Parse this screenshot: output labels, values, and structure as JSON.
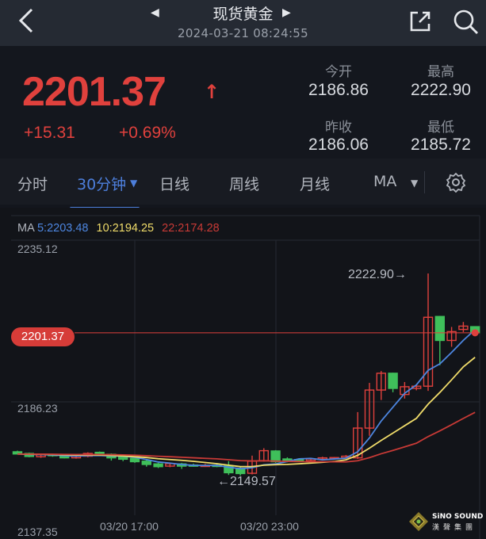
{
  "header": {
    "title": "现货黄金",
    "timestamp": "2024-03-21 08:24:55",
    "icons": [
      "back-icon",
      "prev-arrow-icon",
      "next-arrow-icon",
      "share-icon",
      "search-icon"
    ]
  },
  "quote": {
    "price": "2201.37",
    "direction": "↑",
    "change": "+15.31",
    "change_pct": "+0.69%",
    "stats": [
      {
        "label": "今开",
        "value": "2186.86"
      },
      {
        "label": "最高",
        "value": "2222.90"
      },
      {
        "label": "昨收",
        "value": "2186.06"
      },
      {
        "label": "最低",
        "value": "2185.72"
      }
    ]
  },
  "tabs": [
    {
      "label": "分时"
    },
    {
      "label": "30分钟",
      "active": true
    },
    {
      "label": "日线"
    },
    {
      "label": "周线"
    },
    {
      "label": "月线"
    },
    {
      "label": "MA"
    }
  ],
  "colors": {
    "up": "#e0413d",
    "down": "#3fbf5a",
    "ma5": "#4d86e0",
    "ma10": "#f0dc6a",
    "ma22": "#c83a36",
    "accent": "#4d7fdc"
  },
  "ma_legend": {
    "prefix": "MA",
    "ma5": "5:2203.48",
    "ma10": "10:2194.25",
    "ma22": "22:2174.28"
  },
  "chart_data": {
    "type": "candlestick",
    "y_ticks": [
      "2235.12",
      "2186.23",
      "2137.35"
    ],
    "x_ticks": [
      "03/20 17:00",
      "03/20 23:00"
    ],
    "current_price_tag": "2201.37",
    "high_annotation": "2222.90→",
    "low_annotation": "←2149.57",
    "ylim": [
      2137.35,
      2235.12
    ],
    "ohlc": [
      [
        2158.2,
        2158.6,
        2157.2,
        2157.4
      ],
      [
        2157.6,
        2157.9,
        2156.2,
        2156.5
      ],
      [
        2156.4,
        2157.5,
        2156.0,
        2157.2
      ],
      [
        2157.2,
        2157.5,
        2156.4,
        2156.8
      ],
      [
        2157.0,
        2157.2,
        2155.8,
        2156.0
      ],
      [
        2156.0,
        2157.0,
        2155.7,
        2156.6
      ],
      [
        2156.6,
        2158.0,
        2156.2,
        2157.6
      ],
      [
        2158.0,
        2158.3,
        2157.0,
        2157.3
      ],
      [
        2157.3,
        2157.6,
        2155.0,
        2156.0
      ],
      [
        2156.3,
        2156.8,
        2154.8,
        2155.5
      ],
      [
        2155.8,
        2156.2,
        2154.2,
        2154.6
      ],
      [
        2154.8,
        2155.2,
        2152.8,
        2153.6
      ],
      [
        2153.8,
        2154.2,
        2152.3,
        2152.8
      ],
      [
        2153.0,
        2154.2,
        2152.6,
        2153.9
      ],
      [
        2153.8,
        2154.2,
        2152.0,
        2153.0
      ],
      [
        2153.4,
        2153.9,
        2152.8,
        2153.1
      ],
      [
        2153.0,
        2153.8,
        2152.7,
        2153.3
      ],
      [
        2153.3,
        2153.8,
        2152.6,
        2153.0
      ],
      [
        2153.1,
        2154.8,
        2149.8,
        2150.6
      ],
      [
        2152.2,
        2152.8,
        2149.57,
        2150.3
      ],
      [
        2150.4,
        2156.8,
        2150.0,
        2154.8
      ],
      [
        2155.0,
        2159.5,
        2154.6,
        2158.6
      ],
      [
        2158.5,
        2158.8,
        2154.2,
        2154.6
      ],
      [
        2155.6,
        2156.2,
        2154.4,
        2155.0
      ],
      [
        2155.4,
        2155.8,
        2154.8,
        2155.2
      ],
      [
        2155.0,
        2156.0,
        2154.6,
        2155.6
      ],
      [
        2155.5,
        2156.4,
        2155.2,
        2156.0
      ],
      [
        2155.8,
        2156.3,
        2155.4,
        2156.1
      ],
      [
        2156.0,
        2157.0,
        2155.8,
        2156.6
      ],
      [
        2156.0,
        2172.6,
        2155.6,
        2166.8
      ],
      [
        2166.8,
        2183.2,
        2164.0,
        2180.6
      ],
      [
        2180.6,
        2187.5,
        2177.0,
        2186.7
      ],
      [
        2186.7,
        2186.9,
        2179.8,
        2181.2
      ],
      [
        2179.0,
        2183.5,
        2177.5,
        2181.8
      ],
      [
        2181.2,
        2182.5,
        2180.5,
        2182.0
      ],
      [
        2182.0,
        2222.9,
        2180.3,
        2207.0
      ],
      [
        2207.3,
        2207.5,
        2189.6,
        2198.6
      ],
      [
        2198.6,
        2203.5,
        2196.3,
        2201.8
      ],
      [
        2202.6,
        2205.3,
        2201.6,
        2203.8
      ],
      [
        2203.6,
        2203.7,
        2200.8,
        2201.37
      ]
    ]
  },
  "watermark": {
    "brand": "SiNO SOUND",
    "brand_cn": "漢聲集團"
  }
}
